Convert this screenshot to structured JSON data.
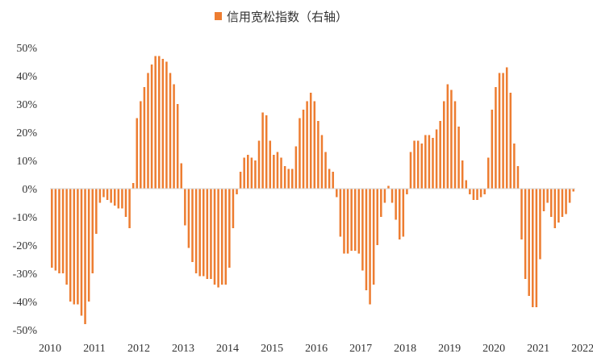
{
  "chart_data": {
    "type": "bar",
    "legend": {
      "label": "信用宽松指数（右轴）",
      "placement": "top"
    },
    "color": "#ED7D31",
    "ylim": [
      -50,
      50
    ],
    "yticks": [
      -50,
      -40,
      -30,
      -20,
      -10,
      0,
      10,
      20,
      30,
      40,
      50
    ],
    "ytick_labels": [
      "-50%",
      "-40%",
      "-30%",
      "-20%",
      "-10%",
      "0%",
      "10%",
      "20%",
      "30%",
      "40%",
      "50%"
    ],
    "xtick_labels": [
      "2010",
      "2011",
      "2012",
      "2013",
      "2014",
      "2015",
      "2016",
      "2017",
      "2018",
      "2019",
      "2020",
      "2021",
      "2022"
    ],
    "x_start": "2010-01",
    "x_frequency": "monthly",
    "grid": false,
    "values": [
      -28,
      -29,
      -30,
      -30,
      -34,
      -40,
      -41,
      -41,
      -45,
      -48,
      -40,
      -30,
      -16,
      -5,
      -3,
      -4,
      -5,
      -6,
      -7,
      -7,
      -10,
      -14,
      2,
      25,
      31,
      36,
      41,
      44,
      47,
      47,
      46,
      45,
      41,
      37,
      30,
      9,
      -13,
      -21,
      -26,
      -30,
      -31,
      -31,
      -32,
      -32,
      -34,
      -35,
      -34,
      -34,
      -28,
      -14,
      -2,
      6,
      11,
      12,
      11,
      10,
      17,
      27,
      26,
      17,
      12,
      13,
      11,
      8,
      7,
      7,
      15,
      25,
      28,
      31,
      34,
      31,
      24,
      19,
      13,
      7,
      6,
      -3,
      -17,
      -23,
      -23,
      -22,
      -22,
      -23,
      -29,
      -36,
      -41,
      -34,
      -20,
      -10,
      -5,
      1,
      -5,
      -11,
      -18,
      -17,
      -2,
      13,
      17,
      17,
      16,
      19,
      19,
      18,
      21,
      24,
      31,
      37,
      35,
      31,
      22,
      10,
      3,
      -2,
      -4,
      -4,
      -3,
      -2,
      11,
      28,
      36,
      41,
      41,
      43,
      34,
      16,
      8,
      -18,
      -32,
      -38,
      -42,
      -42,
      -25,
      -8,
      -5,
      -10,
      -14,
      -12,
      -10,
      -9,
      -5,
      -1
    ]
  }
}
